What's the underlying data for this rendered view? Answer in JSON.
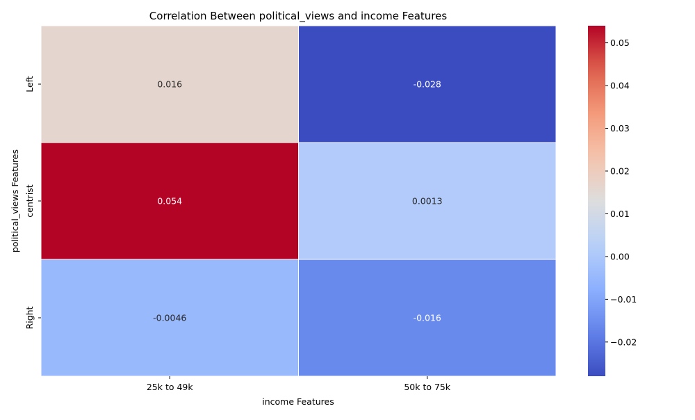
{
  "chart_data": {
    "type": "heatmap",
    "title": "Correlation Between political_views and income Features",
    "xlabel": "income Features",
    "ylabel": "political_views Features",
    "x_categories": [
      "25k to 49k",
      "50k to 75k"
    ],
    "y_categories": [
      "Left",
      "centrist",
      "Right"
    ],
    "values": [
      [
        0.016,
        -0.028
      ],
      [
        0.054,
        0.0013
      ],
      [
        -0.0046,
        -0.016
      ]
    ],
    "annotations": [
      [
        "0.016",
        "-0.028"
      ],
      [
        "0.054",
        "0.0013"
      ],
      [
        "-0.0046",
        "-0.016"
      ]
    ],
    "colormap": "coolwarm",
    "vmin": -0.028,
    "vmax": 0.054,
    "colorbar_ticks": [
      0.05,
      0.04,
      0.03,
      0.02,
      0.01,
      0.0,
      -0.01,
      -0.02
    ],
    "colorbar_tick_labels": [
      "0.05",
      "0.04",
      "0.03",
      "0.02",
      "0.01",
      "0.00",
      "−0.01",
      "−0.02"
    ],
    "cell_border_color": "#ffffff"
  }
}
